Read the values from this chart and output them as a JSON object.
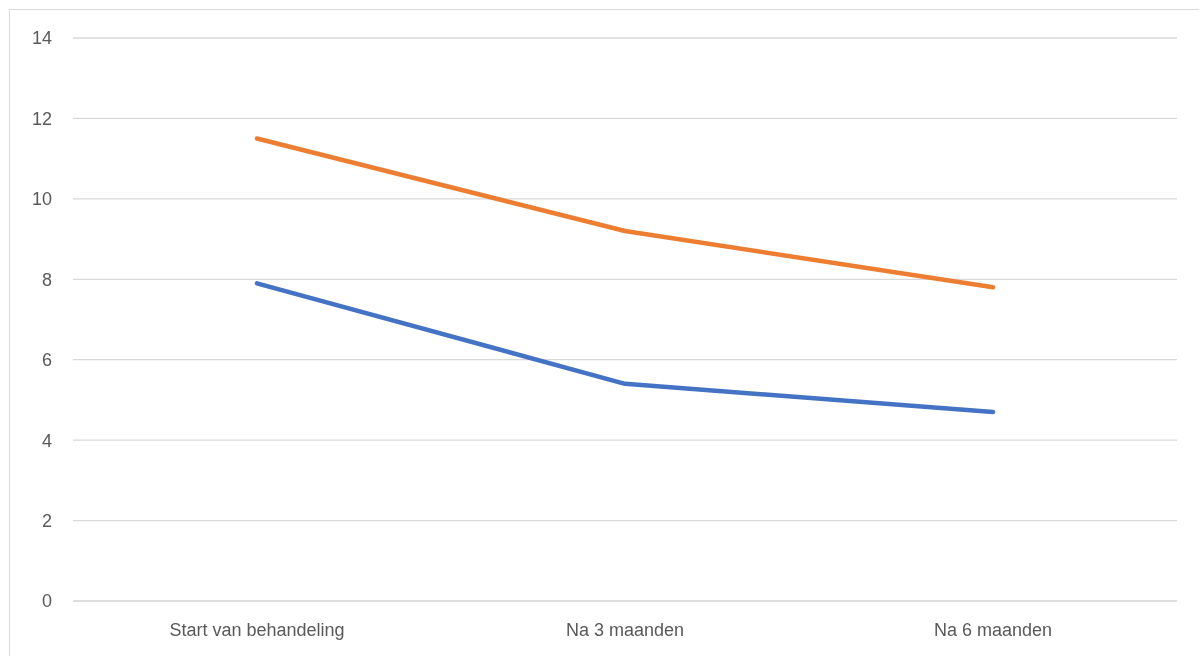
{
  "chart_data": {
    "type": "line",
    "categories": [
      "Start van behandeling",
      "Na 3 maanden",
      "Na 6 maanden"
    ],
    "series": [
      {
        "color": "#4472c4",
        "values": [
          7.9,
          5.4,
          4.7
        ]
      },
      {
        "color": "#ed7d31",
        "values": [
          11.5,
          9.2,
          7.8
        ]
      }
    ],
    "ylim": [
      0,
      14
    ],
    "yticks": [
      0,
      2,
      4,
      6,
      8,
      10,
      12,
      14
    ],
    "grid": "y",
    "marker": "none",
    "line_style": "solid"
  }
}
